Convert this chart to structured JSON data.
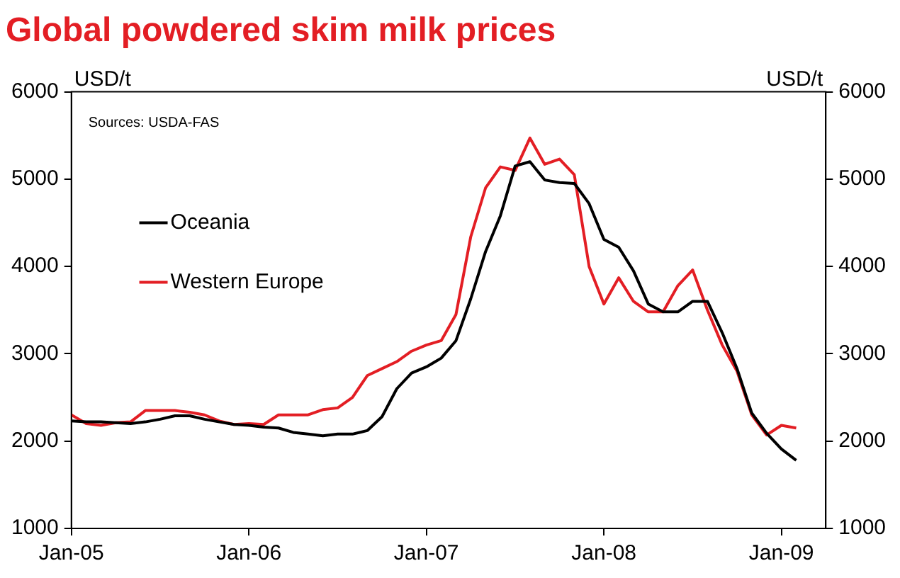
{
  "chart_data": {
    "type": "line",
    "title": "Global powdered skim milk prices",
    "ylabel": "USD/t",
    "y2label": "USD/t",
    "annotations": [
      "Sources: USDA-FAS"
    ],
    "x": [
      "2005-01",
      "2005-02",
      "2005-03",
      "2005-04",
      "2005-05",
      "2005-06",
      "2005-07",
      "2005-08",
      "2005-09",
      "2005-10",
      "2005-11",
      "2005-12",
      "2006-01",
      "2006-02",
      "2006-03",
      "2006-04",
      "2006-05",
      "2006-06",
      "2006-07",
      "2006-08",
      "2006-09",
      "2006-10",
      "2006-11",
      "2006-12",
      "2007-01",
      "2007-02",
      "2007-03",
      "2007-04",
      "2007-05",
      "2007-06",
      "2007-07",
      "2007-08",
      "2007-09",
      "2007-10",
      "2007-11",
      "2007-12",
      "2008-01",
      "2008-02",
      "2008-03",
      "2008-04",
      "2008-05",
      "2008-06",
      "2008-07",
      "2008-08",
      "2008-09",
      "2008-10",
      "2008-11",
      "2008-12",
      "2009-01",
      "2009-02"
    ],
    "series": [
      {
        "name": "Oceania",
        "color": "#000000",
        "values": [
          2230,
          2220,
          2220,
          2210,
          2200,
          2220,
          2250,
          2290,
          2290,
          2250,
          2220,
          2190,
          2180,
          2160,
          2150,
          2100,
          2080,
          2060,
          2080,
          2080,
          2120,
          2280,
          2600,
          2780,
          2850,
          2950,
          3150,
          3630,
          4170,
          4580,
          5150,
          5200,
          4990,
          4960,
          4950,
          4720,
          4310,
          4220,
          3950,
          3570,
          3480,
          3480,
          3600,
          3600,
          3240,
          2830,
          2320,
          2090,
          1910,
          1780
        ]
      },
      {
        "name": "Western Europe",
        "color": "#e31e24",
        "values": [
          2300,
          2200,
          2180,
          2210,
          2220,
          2350,
          2350,
          2350,
          2330,
          2300,
          2230,
          2190,
          2200,
          2190,
          2300,
          2300,
          2300,
          2360,
          2380,
          2500,
          2750,
          2830,
          2910,
          3030,
          3100,
          3150,
          3450,
          4340,
          4900,
          5140,
          5100,
          5470,
          5170,
          5230,
          5050,
          4000,
          3570,
          3870,
          3600,
          3480,
          3480,
          3780,
          3960,
          3500,
          3100,
          2800,
          2300,
          2070,
          2180,
          2150
        ]
      }
    ],
    "xlim": [
      "2005-01",
      "2009-04"
    ],
    "xticks": [
      {
        "value": "2005-01",
        "label": "Jan-05"
      },
      {
        "value": "2006-01",
        "label": "Jan-06"
      },
      {
        "value": "2007-01",
        "label": "Jan-07"
      },
      {
        "value": "2008-01",
        "label": "Jan-08"
      },
      {
        "value": "2009-01",
        "label": "Jan-09"
      }
    ],
    "ylim": [
      1000,
      6000
    ],
    "yticks": [
      1000,
      2000,
      3000,
      4000,
      5000,
      6000
    ],
    "y2lim": [
      1000,
      6000
    ],
    "y2ticks": [
      1000,
      2000,
      3000,
      4000,
      5000,
      6000
    ],
    "grid": false,
    "legend": "left",
    "marker": "none",
    "line_style": "solid"
  }
}
